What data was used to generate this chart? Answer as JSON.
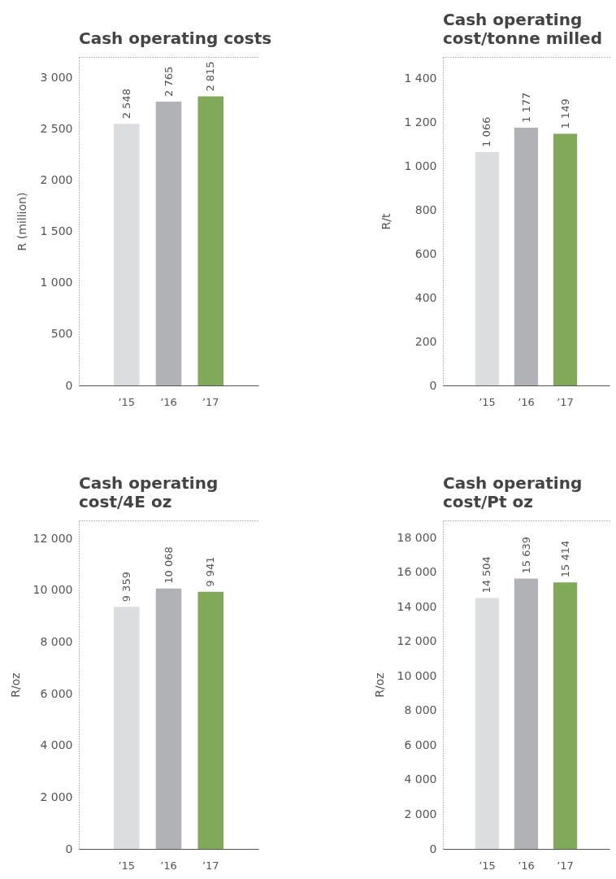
{
  "chart_data": [
    {
      "type": "bar",
      "title": "Cash operating costs",
      "ylabel": "R (million)",
      "categories": [
        "’15",
        "’16",
        "’17"
      ],
      "values": [
        2548,
        2765,
        2815
      ],
      "colors": [
        "#dcdddf",
        "#b1b2b6",
        "#80aa5a"
      ],
      "value_labels": [
        "2 548",
        "2 765",
        "2 815"
      ],
      "ylim": [
        0,
        3200
      ],
      "yticks": [
        0,
        500,
        {
          "value": 1000,
          "label": "1 000"
        },
        {
          "value": 1500,
          "label": "1 500"
        },
        {
          "value": 2000,
          "label": "2 000"
        },
        {
          "value": 2500,
          "label": "2 500"
        },
        {
          "value": 3000,
          "label": "3 000"
        }
      ]
    },
    {
      "type": "bar",
      "title": "Cash operating cost/tonne milled",
      "ylabel": "R/t",
      "categories": [
        "’15",
        "’16",
        "’17"
      ],
      "values": [
        1066,
        1177,
        1149
      ],
      "colors": [
        "#dcdddf",
        "#b1b2b6",
        "#80aa5a"
      ],
      "value_labels": [
        "1 066",
        "1 177",
        "1 149"
      ],
      "ylim": [
        0,
        1500
      ],
      "yticks": [
        0,
        200,
        400,
        600,
        800,
        {
          "value": 1000,
          "label": "1 000"
        },
        {
          "value": 1200,
          "label": "1 200"
        },
        {
          "value": 1400,
          "label": "1 400"
        }
      ]
    },
    {
      "type": "bar",
      "title": "Cash operating cost/4E oz",
      "ylabel": "R/oz",
      "categories": [
        "’15",
        "’16",
        "’17"
      ],
      "values": [
        9359,
        10068,
        9941
      ],
      "colors": [
        "#dcdddf",
        "#b1b2b6",
        "#80aa5a"
      ],
      "value_labels": [
        "9 359",
        "10 068",
        "9 941"
      ],
      "ylim": [
        0,
        12700
      ],
      "yticks": [
        0,
        {
          "value": 2000,
          "label": "2 000"
        },
        {
          "value": 4000,
          "label": "4 000"
        },
        {
          "value": 6000,
          "label": "6 000"
        },
        {
          "value": 8000,
          "label": "8 000"
        },
        {
          "value": 10000,
          "label": "10 000"
        },
        {
          "value": 12000,
          "label": "12 000"
        }
      ]
    },
    {
      "type": "bar",
      "title": "Cash operating cost/Pt oz",
      "ylabel": "R/oz",
      "categories": [
        "’15",
        "’16",
        "’17"
      ],
      "values": [
        14504,
        15639,
        15414
      ],
      "colors": [
        "#dcdddf",
        "#b1b2b6",
        "#80aa5a"
      ],
      "value_labels": [
        "14 504",
        "15 639",
        "15 414"
      ],
      "ylim": [
        0,
        19000
      ],
      "yticks": [
        0,
        {
          "value": 2000,
          "label": "2 000"
        },
        {
          "value": 4000,
          "label": "4 000"
        },
        {
          "value": 6000,
          "label": "6 000"
        },
        {
          "value": 8000,
          "label": "8 000"
        },
        {
          "value": 10000,
          "label": "10 000"
        },
        {
          "value": 12000,
          "label": "12 000"
        },
        {
          "value": 14000,
          "label": "14 000"
        },
        {
          "value": 16000,
          "label": "16 000"
        },
        {
          "value": 18000,
          "label": "18 000"
        }
      ]
    }
  ]
}
